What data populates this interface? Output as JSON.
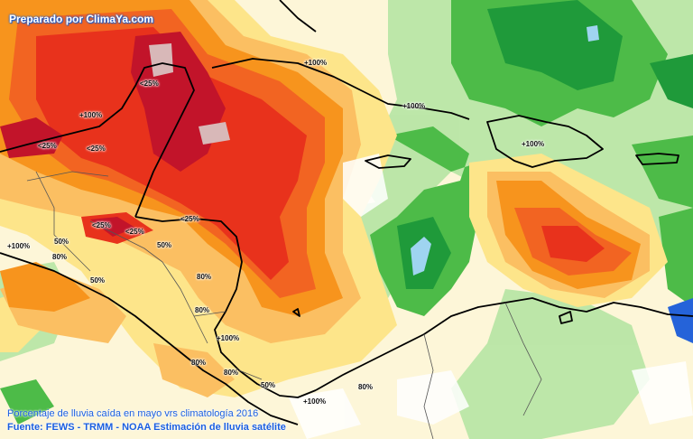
{
  "credit": "Preparado por ClimaYa.com",
  "caption_line1": "Porcentaje de lluvia caída en mayo vrs climatología  2016",
  "caption_line2": "Fuente: FEWS - TRMM - NOAA Estimación de lluvia satélite",
  "palette": {
    "very_dry": "#d8b8b8",
    "darkest_red": "#c2142a",
    "red": "#e8321c",
    "orange_red": "#f26422",
    "orange": "#f7941d",
    "light_orange": "#fbbf62",
    "yellow": "#fde58a",
    "normal": "#ffffff",
    "light_green": "#b9e6a6",
    "green": "#4dbb48",
    "dark_green": "#1f9a3a",
    "light_blue": "#9fd4f0",
    "blue": "#2563d9",
    "coastline": "#000000",
    "borders": "#555555"
  },
  "labels": [
    {
      "id": "lbl-1",
      "text": "+100%"
    },
    {
      "id": "lbl-2",
      "text": "<25%"
    },
    {
      "id": "lbl-3",
      "text": "+100%"
    },
    {
      "id": "lbl-4",
      "text": "<25%"
    },
    {
      "id": "lbl-5",
      "text": "<25%"
    },
    {
      "id": "lbl-6",
      "text": "+100%"
    },
    {
      "id": "lbl-7",
      "text": "+100%"
    },
    {
      "id": "lbl-8",
      "text": "<25%"
    },
    {
      "id": "lbl-9",
      "text": "<25%"
    },
    {
      "id": "lbl-10",
      "text": "<25%"
    },
    {
      "id": "lbl-11",
      "text": "+100%"
    },
    {
      "id": "lbl-12",
      "text": "50%"
    },
    {
      "id": "lbl-13",
      "text": "80%"
    },
    {
      "id": "lbl-14",
      "text": "50%"
    },
    {
      "id": "lbl-15",
      "text": "50%"
    },
    {
      "id": "lbl-16",
      "text": "80%"
    },
    {
      "id": "lbl-17",
      "text": "80%"
    },
    {
      "id": "lbl-18",
      "text": "+100%"
    },
    {
      "id": "lbl-19",
      "text": "80%"
    },
    {
      "id": "lbl-20",
      "text": "80%"
    },
    {
      "id": "lbl-21",
      "text": "50%"
    },
    {
      "id": "lbl-22",
      "text": "+100%"
    },
    {
      "id": "lbl-23",
      "text": "80%"
    }
  ]
}
